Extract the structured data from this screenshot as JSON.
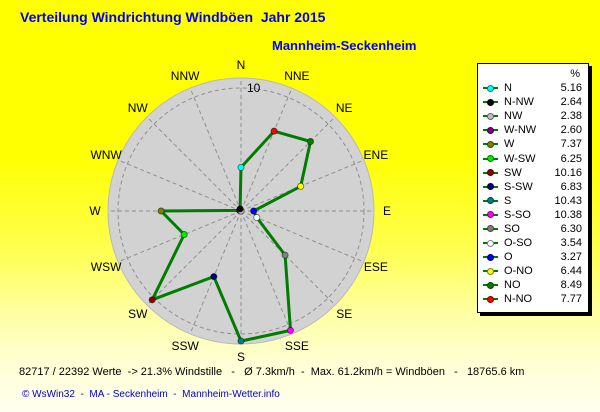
{
  "header": {
    "title": "Verteilung Windrichtung Windböen  Jahr 2015",
    "station": "Mannheim-Seckenheim"
  },
  "legend": {
    "header": "%"
  },
  "chart_data": {
    "type": "radar",
    "title": "Verteilung Windrichtung Windböen  Jahr 2015",
    "subtitle": "Mannheim-Seckenheim",
    "unit": "%",
    "axis_labels": [
      "N",
      "NNE",
      "NE",
      "ENE",
      "E",
      "ESE",
      "SE",
      "SSE",
      "S",
      "SSW",
      "SW",
      "WSW",
      "W",
      "WNW",
      "NW",
      "NNW"
    ],
    "scale": {
      "ring_label": "10",
      "ring_value": 10,
      "center_value": 2.5,
      "outer_value": 10.6,
      "grid": "dashed"
    },
    "polygon_color": "#007d00",
    "disk_color": "#d2d2d2",
    "grid_color": "#8f8f8f",
    "legend_position": "right",
    "series": [
      {
        "label": "N",
        "value": 5.16,
        "display": "5.16",
        "color": "#00ffff",
        "bearing": 0
      },
      {
        "label": "N-NW",
        "value": 2.64,
        "display": "2.64",
        "color": "#000000",
        "bearing": 337.5
      },
      {
        "label": "NW",
        "value": 2.38,
        "display": "2.38",
        "color": "#c0c0c0",
        "bearing": 315
      },
      {
        "label": "W-NW",
        "value": 2.6,
        "display": "2.60",
        "color": "#800080",
        "bearing": 292.5
      },
      {
        "label": "W",
        "value": 7.37,
        "display": "7.37",
        "color": "#808000",
        "bearing": 270
      },
      {
        "label": "W-SW",
        "value": 6.25,
        "display": "6.25",
        "color": "#00ee00",
        "bearing": 247.5
      },
      {
        "label": "SW",
        "value": 10.16,
        "display": "10.16",
        "color": "#8b0000",
        "bearing": 225
      },
      {
        "label": "S-SW",
        "value": 6.83,
        "display": "6.83",
        "color": "#000080",
        "bearing": 202.5
      },
      {
        "label": "S",
        "value": 10.43,
        "display": "10.43",
        "color": "#008080",
        "bearing": 180
      },
      {
        "label": "S-SO",
        "value": 10.38,
        "display": "10.38",
        "color": "#ff00ff",
        "bearing": 157.5
      },
      {
        "label": "SO",
        "value": 6.3,
        "display": "6.30",
        "color": "#808080",
        "bearing": 135
      },
      {
        "label": "O-SO",
        "value": 3.54,
        "display": "3.54",
        "color": "#ffffff",
        "bearing": 112.5
      },
      {
        "label": "O",
        "value": 3.27,
        "display": "3.27",
        "color": "#0000ff",
        "bearing": 90
      },
      {
        "label": "O-NO",
        "value": 6.44,
        "display": "6.44",
        "color": "#ffff00",
        "bearing": 67.5
      },
      {
        "label": "NO",
        "value": 8.49,
        "display": "8.49",
        "color": "#008000",
        "bearing": 45
      },
      {
        "label": "N-NO",
        "value": 7.77,
        "display": "7.77",
        "color": "#ff0000",
        "bearing": 22.5
      }
    ]
  },
  "footer": {
    "stats": "82717 / 22392 Werte  -> 21.3% Windstille   -   Ø 7.3km/h  -  Max. 61.2km/h = Windböen   -   18765.6 km",
    "credit": "© WsWin32  -  MA - Seckenheim  -  Mannheim-Wetter.info"
  }
}
